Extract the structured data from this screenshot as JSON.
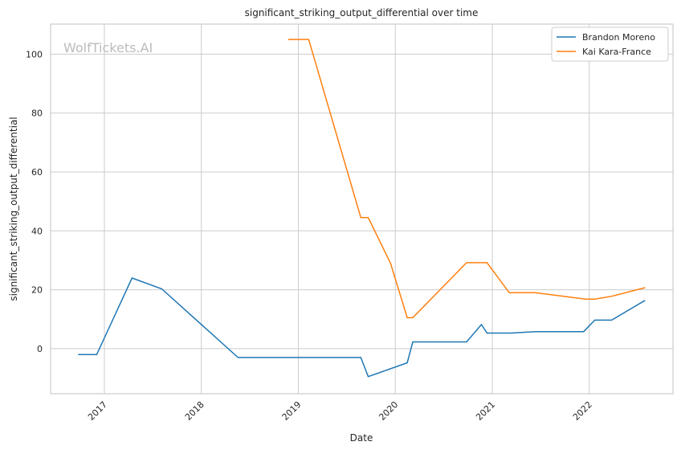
{
  "chart_data": {
    "type": "line",
    "title": "significant_striking_output_differential over time",
    "xlabel": "Date",
    "ylabel": "significant_striking_output_differential",
    "watermark": "WolfTickets.AI",
    "xlim": [
      "2016-06-12",
      "2022-11-12"
    ],
    "ylim": [
      -15.3,
      110.2
    ],
    "xticks": [
      "2017",
      "2018",
      "2019",
      "2020",
      "2021",
      "2022"
    ],
    "yticks": [
      0,
      20,
      40,
      60,
      80,
      100
    ],
    "grid": true,
    "legend_position": "top-right",
    "series": [
      {
        "name": "Brandon Moreno",
        "color": "#1f77b4",
        "x": [
          "2016-09-24",
          "2016-12-03",
          "2017-04-15",
          "2017-08-05",
          "2018-05-19",
          "2019-08-24",
          "2019-09-21",
          "2020-02-15",
          "2020-03-07",
          "2020-09-26",
          "2020-11-21",
          "2020-12-12",
          "2021-03-13",
          "2021-06-12",
          "2021-12-11",
          "2022-01-22",
          "2022-03-26",
          "2022-07-30"
        ],
        "values": [
          -2,
          -2,
          24,
          20.3,
          -3,
          -3,
          -9.5,
          -4.8,
          2.3,
          2.3,
          8.2,
          5.3,
          5.3,
          5.8,
          5.8,
          9.7,
          9.7,
          16.4
        ]
      },
      {
        "name": "Kai Kara-France",
        "color": "#ff7f0e",
        "x": [
          "2018-11-24",
          "2019-02-09",
          "2019-08-24",
          "2019-09-21",
          "2019-12-14",
          "2020-02-15",
          "2020-03-07",
          "2020-09-26",
          "2020-12-12",
          "2021-03-06",
          "2021-06-12",
          "2021-12-18",
          "2022-01-22",
          "2022-03-26",
          "2022-07-30"
        ],
        "values": [
          105,
          105,
          44.5,
          44.5,
          29,
          10.5,
          10.5,
          29.2,
          29.2,
          19,
          19,
          16.8,
          16.8,
          17.8,
          20.7
        ]
      }
    ]
  }
}
